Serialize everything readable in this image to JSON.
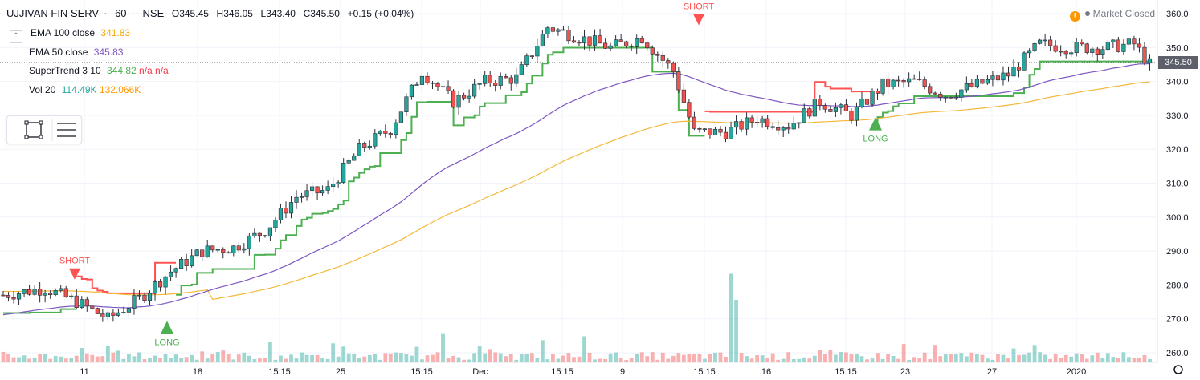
{
  "header": {
    "symbol": "UJJIVAN FIN SERV",
    "interval": "60",
    "exchange": "NSE",
    "ohlc": {
      "open": "O345.45",
      "high": "H346.05",
      "low": "L343.40",
      "close": "C345.50",
      "change": "+0.15 (+0.04%)"
    },
    "separator": "·"
  },
  "legend": [
    {
      "name": "EMA 100 close",
      "value": "341.83",
      "value2": "",
      "value3": "",
      "color": "#f2b93b"
    },
    {
      "name": "EMA 50 close",
      "value": "345.83",
      "value2": "",
      "value3": "",
      "color": "#7e57c2"
    },
    {
      "name": "SuperTrend 3 10",
      "value": "344.82",
      "value2": "n/a",
      "value3": "n/a",
      "color": "#4caf50",
      "color2": "#f23645"
    },
    {
      "name": "Vol 20",
      "value": "114.49K",
      "value2": "132.066K",
      "value3": "",
      "color": "#26a69a",
      "color2": "#ff9800"
    }
  ],
  "status": {
    "icon": "warning-icon",
    "text": "Market Closed"
  },
  "last_price": "345.50",
  "colors": {
    "up": "#26a69a",
    "down": "#ef5350",
    "ema100": "#f2b93b",
    "ema50": "#7e57c2",
    "st_up": "#4caf50",
    "st_down": "#ff5252",
    "badge": "#5d606b"
  },
  "chart_data": {
    "type": "candlestick",
    "y_axis": {
      "ticks": [
        260,
        270,
        280,
        290,
        300,
        310,
        320,
        330,
        340,
        350,
        360
      ],
      "range": [
        258,
        362
      ],
      "position": "right"
    },
    "x_axis": {
      "labels": [
        "11",
        "18",
        "15:15",
        "25",
        "15:15",
        "Dec",
        "15:15",
        "9",
        "15:15",
        "16",
        "15:15",
        "23",
        "27",
        "2020"
      ]
    },
    "signals": [
      {
        "label": "SHORT",
        "type": "short",
        "price": 283
      },
      {
        "label": "LONG",
        "type": "long",
        "price": 267
      },
      {
        "label": "SHORT",
        "type": "short",
        "price": 358
      },
      {
        "label": "LONG",
        "type": "long",
        "price": 327
      }
    ],
    "price_path": [
      [
        0,
        277
      ],
      [
        8,
        279
      ],
      [
        14,
        275
      ],
      [
        20,
        270
      ],
      [
        26,
        276
      ],
      [
        32,
        284
      ],
      [
        38,
        290
      ],
      [
        44,
        291
      ],
      [
        50,
        296
      ],
      [
        56,
        306
      ],
      [
        62,
        308
      ],
      [
        68,
        320
      ],
      [
        74,
        326
      ],
      [
        80,
        343
      ],
      [
        86,
        334
      ],
      [
        92,
        340
      ],
      [
        98,
        341
      ],
      [
        104,
        356
      ],
      [
        110,
        353
      ],
      [
        116,
        350
      ],
      [
        122,
        353
      ],
      [
        128,
        343
      ],
      [
        132,
        325
      ],
      [
        138,
        325
      ],
      [
        144,
        329
      ],
      [
        150,
        327
      ],
      [
        156,
        334
      ],
      [
        162,
        330
      ],
      [
        168,
        339
      ],
      [
        174,
        340
      ],
      [
        180,
        336
      ],
      [
        186,
        339
      ],
      [
        192,
        342
      ],
      [
        198,
        351
      ],
      [
        204,
        350
      ],
      [
        210,
        350
      ],
      [
        216,
        351
      ],
      [
        219,
        345
      ]
    ],
    "volume_spikes": [
      {
        "bar": 139,
        "value": 85
      },
      {
        "bar": 140,
        "value": 60
      },
      {
        "bar": 84,
        "value": 28
      },
      {
        "bar": 111,
        "value": 25
      }
    ],
    "total_bars": 220,
    "grid": true,
    "legend_position": "top-left"
  }
}
